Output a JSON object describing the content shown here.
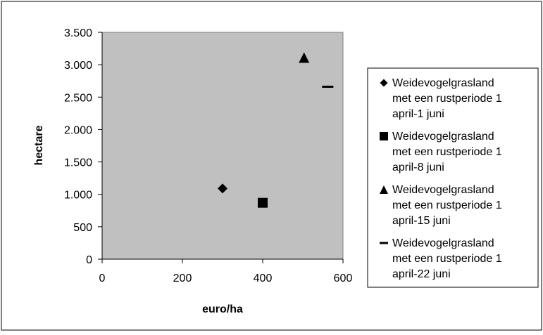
{
  "chart_data": {
    "type": "scatter",
    "title": "",
    "xlabel": "euro/ha",
    "ylabel": "hectare",
    "xlim": [
      0,
      600
    ],
    "ylim": [
      0,
      3500
    ],
    "x_ticks": [
      0,
      200,
      400,
      600
    ],
    "x_tick_labels": [
      "0",
      "200",
      "400",
      "600"
    ],
    "y_ticks": [
      0,
      500,
      1000,
      1500,
      2000,
      2500,
      3000,
      3500
    ],
    "y_tick_labels": [
      "0",
      "500",
      "1.000",
      "1.500",
      "2.000",
      "2.500",
      "3.000",
      "3.500"
    ],
    "grid": false,
    "plot_background": "#c0c0c0",
    "legend_position": "right",
    "series": [
      {
        "name_lines": [
          "Weidevogelgrasland",
          "met een rustperiode 1",
          "april-1 juni"
        ],
        "marker": "diamond",
        "x": [
          300
        ],
        "y": [
          1090
        ],
        "color": "#000000"
      },
      {
        "name_lines": [
          "Weidevogelgrasland",
          "met een rustperiode 1",
          "april-8 juni"
        ],
        "marker": "square",
        "x": [
          400
        ],
        "y": [
          870
        ],
        "color": "#000000"
      },
      {
        "name_lines": [
          "Weidevogelgrasland",
          "met een rustperiode 1",
          "april-15 juni"
        ],
        "marker": "triangle",
        "x": [
          503
        ],
        "y": [
          3110
        ],
        "color": "#000000"
      },
      {
        "name_lines": [
          "Weidevogelgrasland",
          "met een rustperiode 1",
          "april-22 juni"
        ],
        "marker": "dash",
        "x": [
          562
        ],
        "y": [
          2660
        ],
        "color": "#000000"
      }
    ]
  }
}
